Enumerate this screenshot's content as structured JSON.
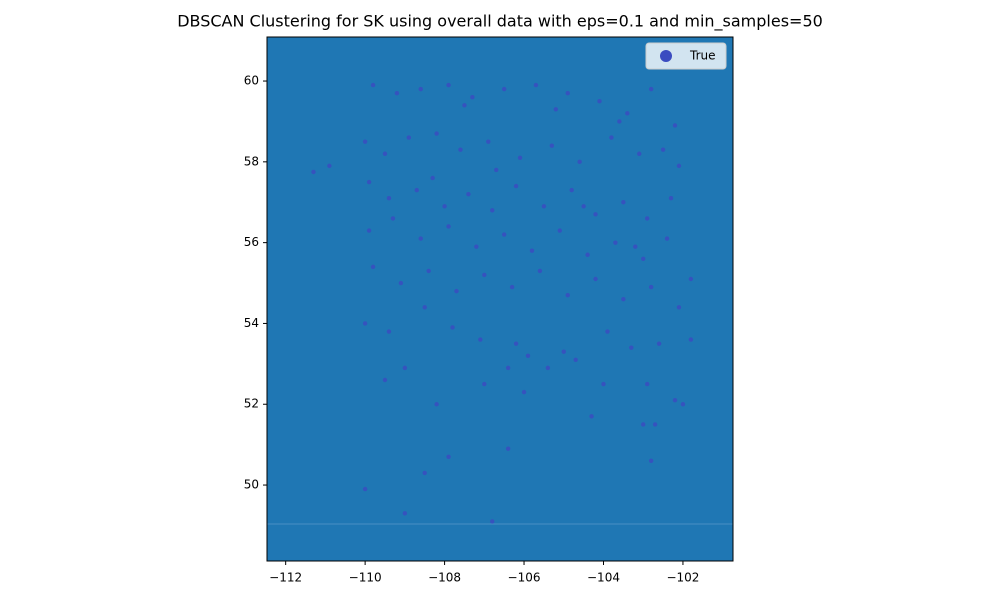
{
  "chart_data": {
    "type": "scatter",
    "title": "DBSCAN Clustering for SK using overall data with eps=0.1 and min_samples=50",
    "background": "#1f77b4",
    "legend": "upper right",
    "xlim": [
      -112.47,
      -100.74
    ],
    "ylim": [
      48.12,
      61.09
    ],
    "xticks": [
      {
        "value": -112,
        "label": "−112"
      },
      {
        "value": -110,
        "label": "−110"
      },
      {
        "value": -108,
        "label": "−108"
      },
      {
        "value": -106,
        "label": "−106"
      },
      {
        "value": -104,
        "label": "−104"
      },
      {
        "value": -102,
        "label": "−102"
      }
    ],
    "yticks": [
      50,
      52,
      54,
      56,
      58,
      60
    ],
    "series": [
      {
        "name": "True",
        "color": "#3b4cc0",
        "x": [
          -109.8,
          -109.2,
          -108.6,
          -107.9,
          -107.3,
          -106.5,
          -105.7,
          -104.9,
          -104.1,
          -103.4,
          -102.8,
          -102.2,
          -110.0,
          -109.5,
          -108.9,
          -108.2,
          -107.6,
          -106.9,
          -106.1,
          -105.3,
          -104.6,
          -103.8,
          -103.1,
          -102.5,
          -102.1,
          -111.3,
          -110.9,
          -109.9,
          -109.4,
          -108.7,
          -108.0,
          -107.4,
          -106.8,
          -106.2,
          -105.5,
          -104.8,
          -104.2,
          -103.5,
          -102.9,
          -102.3,
          -109.9,
          -109.3,
          -108.6,
          -107.9,
          -107.2,
          -106.5,
          -105.8,
          -105.1,
          -104.4,
          -103.7,
          -103.0,
          -102.4,
          -101.8,
          -109.8,
          -109.1,
          -108.4,
          -107.7,
          -107.0,
          -106.3,
          -105.6,
          -104.9,
          -104.2,
          -103.5,
          -102.8,
          -102.1,
          -110.0,
          -109.4,
          -108.5,
          -107.8,
          -107.1,
          -106.2,
          -105.9,
          -105.0,
          -104.7,
          -103.9,
          -103.3,
          -102.6,
          -101.8,
          -106.4,
          -105.4,
          -109.5,
          -109.0,
          -108.2,
          -106.0,
          -104.0,
          -104.3,
          -103.0,
          -102.7,
          -102.2,
          -102.0,
          -102.9,
          -107.0,
          -106.4,
          -107.9,
          -108.5,
          -102.8,
          -110.0,
          -109.0,
          -106.8,
          -107.5,
          -105.2,
          -103.6,
          -104.5,
          -103.2,
          -106.7,
          -108.3
        ],
        "values": [
          59.9,
          59.7,
          59.8,
          59.9,
          59.6,
          59.8,
          59.9,
          59.7,
          59.5,
          59.2,
          59.8,
          58.9,
          58.5,
          58.2,
          58.6,
          58.7,
          58.3,
          58.5,
          58.1,
          58.4,
          58.0,
          58.6,
          58.2,
          58.3,
          57.9,
          57.75,
          57.9,
          57.5,
          57.1,
          57.3,
          56.9,
          57.2,
          56.8,
          57.4,
          56.9,
          57.3,
          56.7,
          57.0,
          56.6,
          57.1,
          56.3,
          56.6,
          56.1,
          56.4,
          55.9,
          56.2,
          55.8,
          56.3,
          55.7,
          56.0,
          55.6,
          56.1,
          55.1,
          55.4,
          55.0,
          55.3,
          54.8,
          55.2,
          54.9,
          55.3,
          54.7,
          55.1,
          54.6,
          54.9,
          54.4,
          54.0,
          53.8,
          54.4,
          53.9,
          53.6,
          53.5,
          53.2,
          53.3,
          53.1,
          53.8,
          53.4,
          53.5,
          53.6,
          52.9,
          52.9,
          52.6,
          52.9,
          52.0,
          52.3,
          52.5,
          51.7,
          51.5,
          51.5,
          52.1,
          52.0,
          52.5,
          52.5,
          50.9,
          50.7,
          50.3,
          50.6,
          49.9,
          49.3,
          49.1,
          59.4,
          59.3,
          59.0,
          56.9,
          55.9,
          57.8,
          57.6
        ]
      }
    ]
  }
}
